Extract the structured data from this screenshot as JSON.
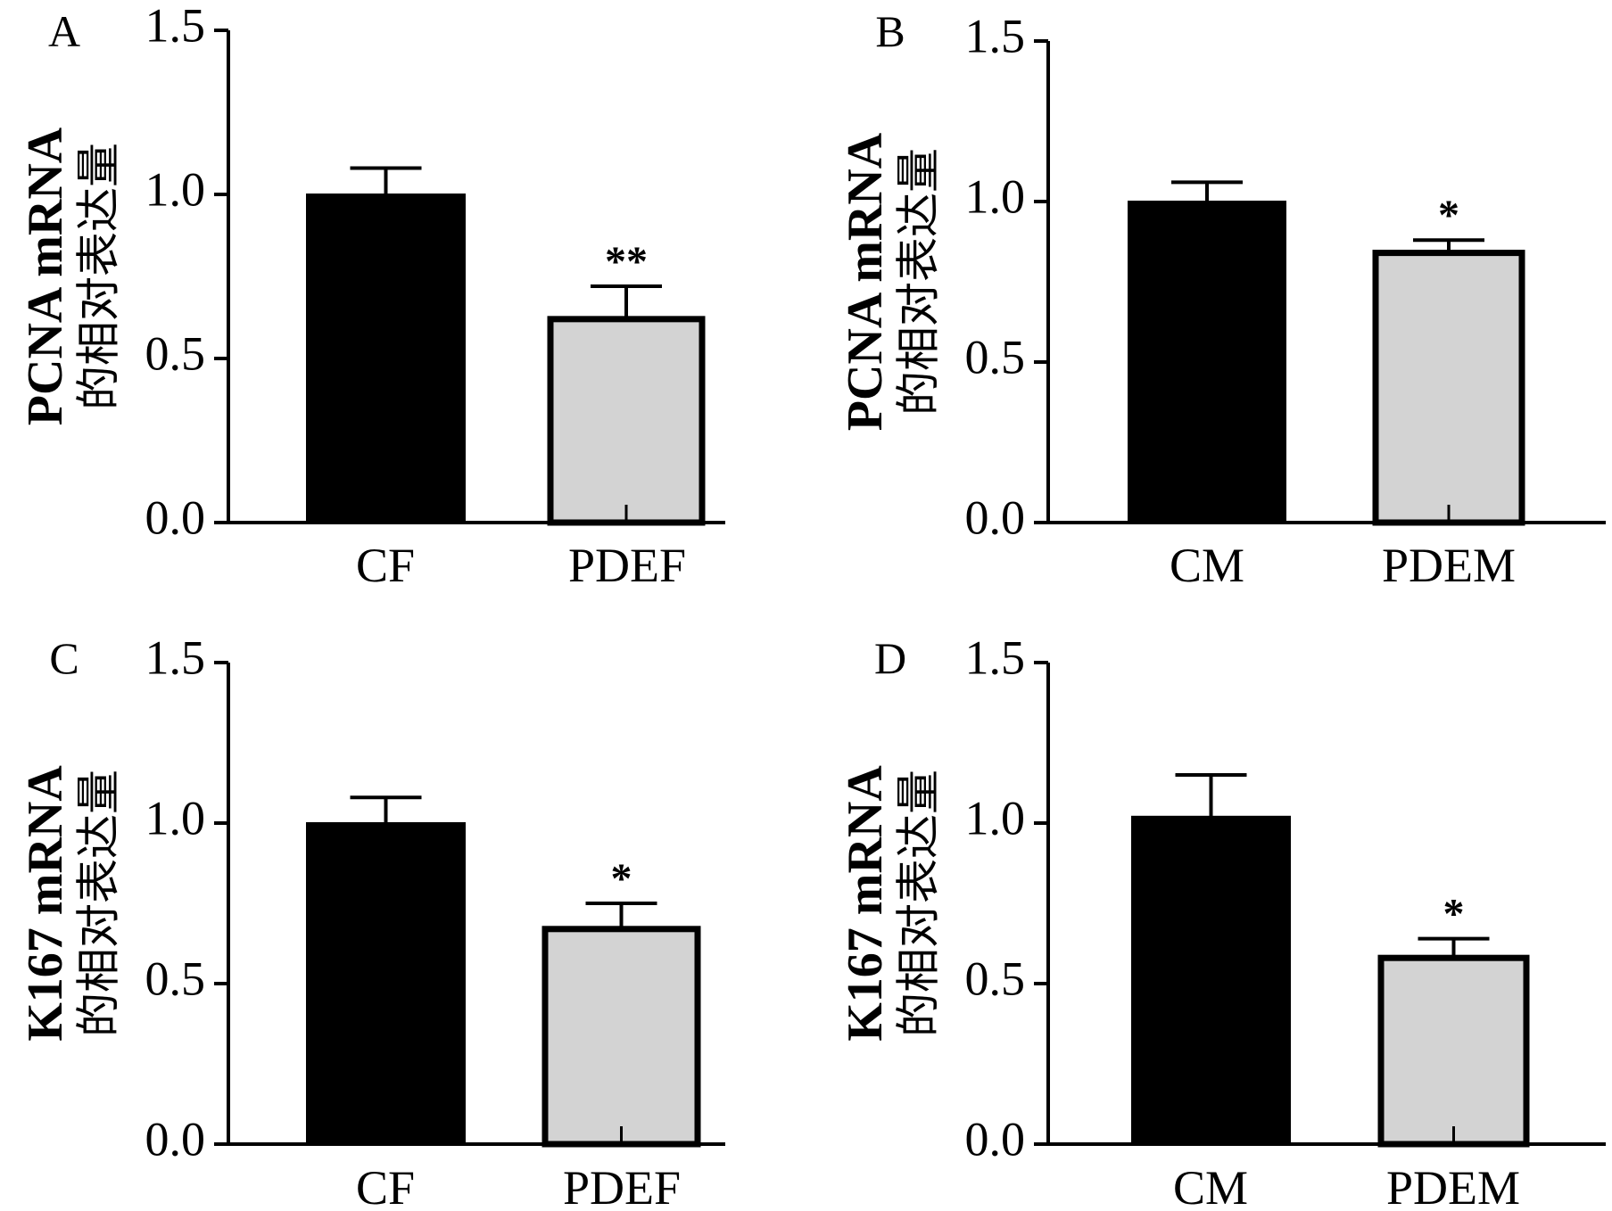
{
  "chart_data": [
    {
      "panel": "A",
      "type": "bar",
      "ylabel_line1": "PCNA mRNA",
      "ylabel_line2": "的相对表达量",
      "ylim": [
        0,
        1.5
      ],
      "yticks": [
        "0.0",
        "0.5",
        "1.0",
        "1.5"
      ],
      "categories": [
        "CF",
        "PDEF"
      ],
      "values": [
        1.0,
        0.62
      ],
      "errors": [
        0.08,
        0.1
      ],
      "significance": [
        "",
        "**"
      ],
      "fills": [
        "#000000",
        "#d3d3d3"
      ]
    },
    {
      "panel": "B",
      "type": "bar",
      "ylabel_line1": "PCNA mRNA",
      "ylabel_line2": "的相对表达量",
      "ylim": [
        0,
        1.5
      ],
      "yticks": [
        "0.0",
        "0.5",
        "1.0",
        "1.5"
      ],
      "categories": [
        "CM",
        "PDEM"
      ],
      "values": [
        1.0,
        0.84
      ],
      "errors": [
        0.06,
        0.04
      ],
      "significance": [
        "",
        "*"
      ],
      "fills": [
        "#000000",
        "#d3d3d3"
      ]
    },
    {
      "panel": "C",
      "type": "bar",
      "ylabel_line1": "K167 mRNA",
      "ylabel_line2": "的相对表达量",
      "ylim": [
        0,
        1.5
      ],
      "yticks": [
        "0.0",
        "0.5",
        "1.0",
        "1.5"
      ],
      "categories": [
        "CF",
        "PDEF"
      ],
      "values": [
        1.0,
        0.67
      ],
      "errors": [
        0.08,
        0.08
      ],
      "significance": [
        "",
        "*"
      ],
      "fills": [
        "#000000",
        "#d3d3d3"
      ]
    },
    {
      "panel": "D",
      "type": "bar",
      "ylabel_line1": "K167 mRNA",
      "ylabel_line2": "的相对表达量",
      "ylim": [
        0,
        1.5
      ],
      "yticks": [
        "0.0",
        "0.5",
        "1.0",
        "1.5"
      ],
      "categories": [
        "CM",
        "PDEM"
      ],
      "values": [
        1.02,
        0.58
      ],
      "errors": [
        0.13,
        0.06
      ],
      "significance": [
        "",
        "*"
      ],
      "fills": [
        "#000000",
        "#d3d3d3"
      ]
    }
  ]
}
